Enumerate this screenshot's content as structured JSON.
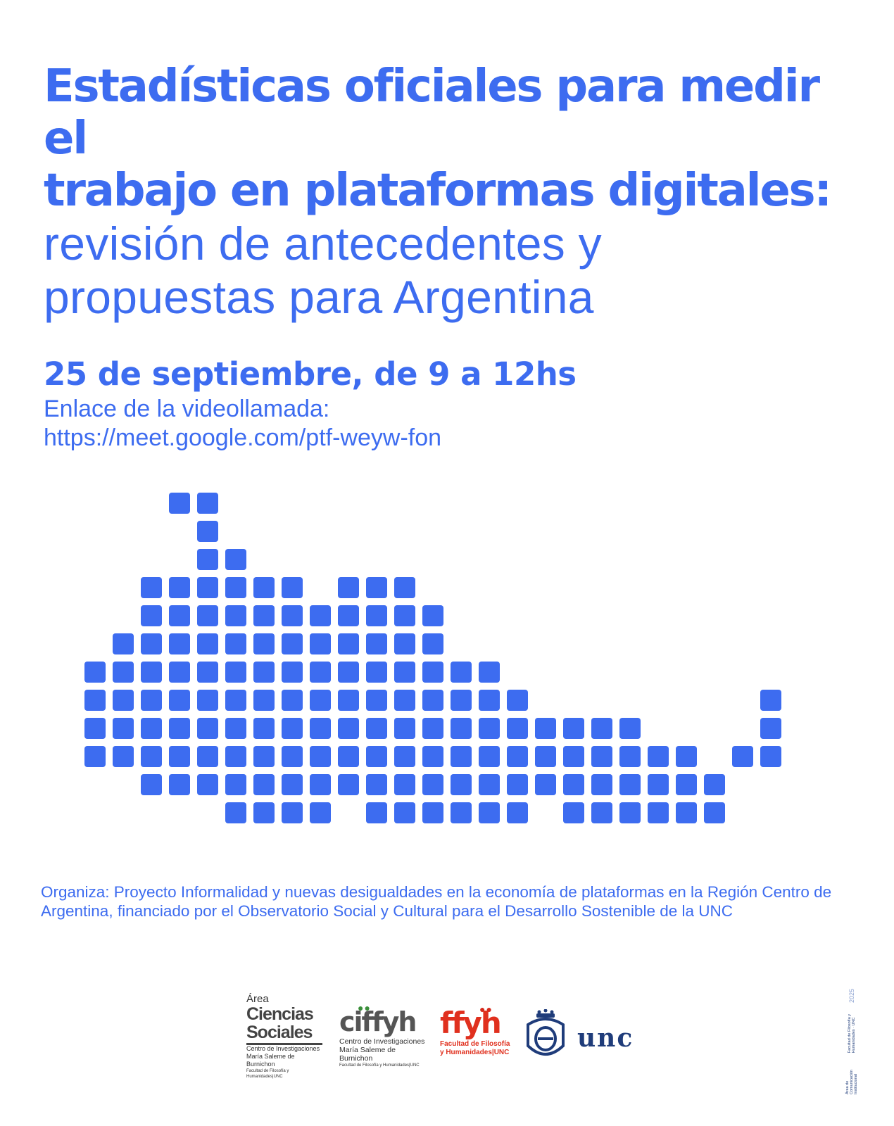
{
  "title": {
    "bold_line1": "Estadísticas oficiales para medir el",
    "bold_line2": "trabajo en plataformas digitales:",
    "light_line1": "revisión de antecedentes y",
    "light_line2": "propuestas para Argentina"
  },
  "event": {
    "date": "25 de septiembre, de 9 a 12hs",
    "link_label": "Enlace de la videollamada:",
    "link_url": "https://meet.google.com/ptf-weyw-fon"
  },
  "organiza": "Organiza: Proyecto Informalidad y nuevas desigualdades en la economía de plataformas en la Región Centro de Argentina, financiado por el Observatorio Social y Cultural para el Desarrollo Sostenible de la UNC",
  "logos": {
    "csoc": {
      "area": "Área",
      "line1": "Ciencias",
      "line2": "Sociales",
      "sub1": "Centro de Investigaciones",
      "sub2": "María Saleme de Burnichon",
      "sub3": "Facultad de Filosofía y Humanidades|UNC"
    },
    "ciffyh": {
      "name": "ciffyh",
      "sub1": "Centro de Investigaciones",
      "sub2": "María Saleme de Burnichon",
      "sub3": "Facultad de Filosofía y Humanidades|UNC"
    },
    "ffyh": {
      "name": "ffyh",
      "sub1": "Facultad de Filosofía",
      "sub2": "y Humanidades|UNC"
    },
    "unc": {
      "name": "unc"
    }
  },
  "sidebar": {
    "line1": "Área de Comunicación Institucional",
    "line2": "Facultad de Filosofía y Humanidades · UNC",
    "year": "2025"
  },
  "colors": {
    "primary": "#3d6cf0",
    "text": "#3d6cf0"
  }
}
